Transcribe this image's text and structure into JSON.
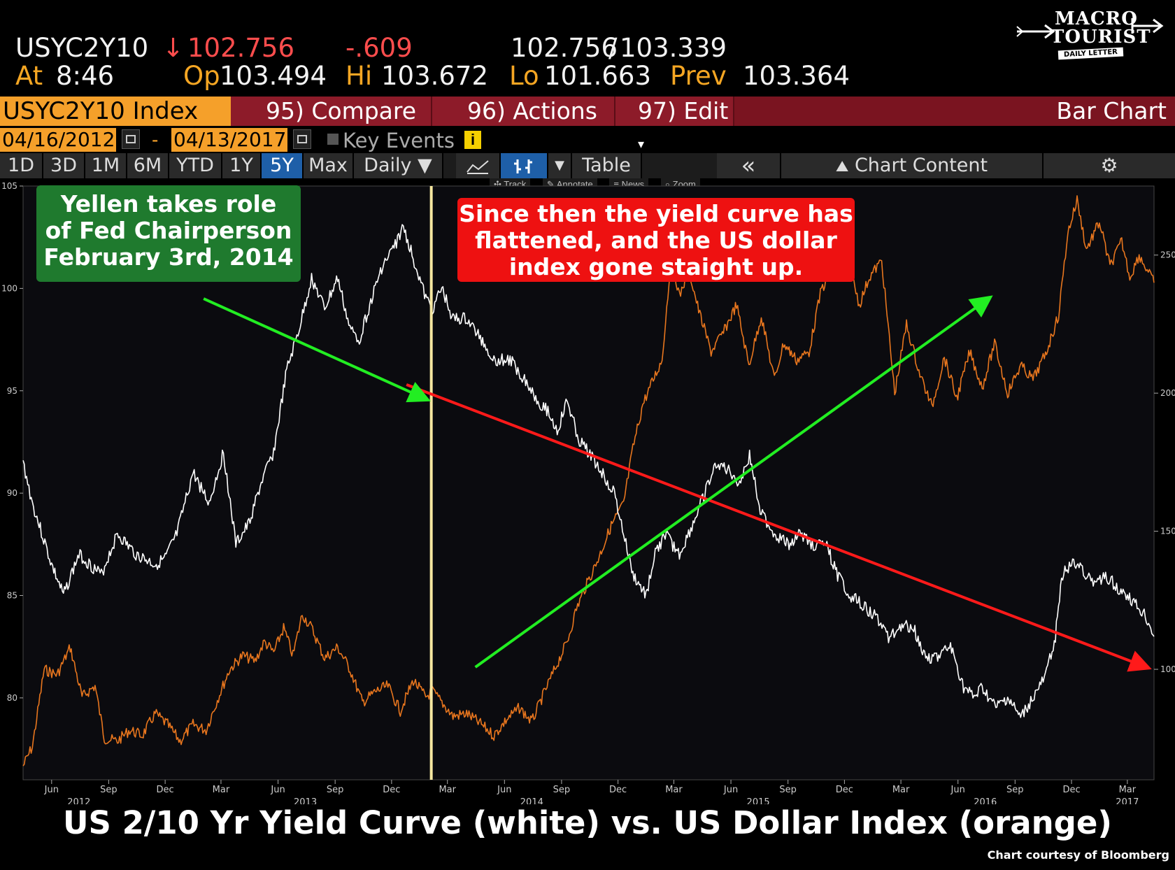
{
  "quote": {
    "ticker": "USYC2Y10",
    "last_arrow": "↓",
    "last": "102.756",
    "change": "-.609",
    "bid_ask_bid": "102.756",
    "bid_ask_sep": "/",
    "bid_ask_ask": "103.339",
    "at_label": "At",
    "time": "8:46",
    "open_label": "Op",
    "open": "103.494",
    "high_label": "Hi",
    "high": "103.672",
    "low_label": "Lo",
    "low": "101.663",
    "prev_label": "Prev",
    "prev": "103.364"
  },
  "logo": {
    "line1": "MACRO",
    "line2": "TOURIST",
    "line3": "DAILY LETTER"
  },
  "function_bar": {
    "security": "USYC2Y10 Index",
    "compare": "95) Compare",
    "actions": "96) Actions",
    "edit": "97) Edit",
    "chart_type": "Bar Chart"
  },
  "date_range": {
    "start": "04/16/2012",
    "separator": "-",
    "end": "04/13/2017",
    "key_events": "Key Events",
    "info": "i"
  },
  "range_buttons": [
    "1D",
    "3D",
    "1M",
    "6M",
    "YTD",
    "1Y",
    "5Y",
    "Max"
  ],
  "selected_range": "5Y",
  "frequency": "Daily ▼",
  "toolbar": {
    "table": "Table",
    "collapse": "«",
    "chart_content": "Chart Content",
    "settings": "⚙"
  },
  "tools": [
    "✣ Track",
    "✎ Annotate",
    "≡ News",
    "⌕ Zoom"
  ],
  "annotations": {
    "left": [
      "Yellen takes role",
      "of Fed Chairperson",
      "February 3rd, 2014"
    ],
    "right": [
      "Since then the yield curve has",
      "flattened, and the US dollar",
      "index gone staight up."
    ]
  },
  "chart_title": "US 2/10 Yr Yield Curve (white) vs. US Dollar Index (orange)",
  "credit": "Chart courtesy of Bloomberg",
  "colors": {
    "yield_curve": "#ffffff",
    "dollar_index": "#e8761e",
    "event_line": "#f6e7a0",
    "down_arrow": "#ff1a1a",
    "up_arrow": "#22ee22",
    "fn_bar": "#8d1b29",
    "ticker_bg": "#f5a02a"
  },
  "chart_data": {
    "type": "line",
    "x_range": [
      "2012-04-16",
      "2017-04-13"
    ],
    "x_tick_labels": [
      "Jun",
      "Sep",
      "Dec",
      "Mar",
      "Jun",
      "Sep",
      "Dec",
      "Mar",
      "Jun",
      "Sep",
      "Dec",
      "Mar",
      "Jun",
      "Sep",
      "Dec",
      "Mar",
      "Jun",
      "Sep",
      "Dec",
      "Mar"
    ],
    "x_tick_dates": [
      "2012-06-01",
      "2012-09-01",
      "2012-12-01",
      "2013-03-01",
      "2013-06-01",
      "2013-09-01",
      "2013-12-01",
      "2014-03-01",
      "2014-06-01",
      "2014-09-01",
      "2014-12-01",
      "2015-03-01",
      "2015-06-01",
      "2015-09-01",
      "2015-12-01",
      "2016-03-01",
      "2016-06-01",
      "2016-09-01",
      "2016-12-01",
      "2017-03-01"
    ],
    "year_labels": [
      "2012",
      "2013",
      "2014",
      "2015",
      "2016",
      "2017"
    ],
    "year_label_dates": [
      "2012-07-15",
      "2013-07-15",
      "2014-07-15",
      "2015-07-15",
      "2016-07-15",
      "2017-03-01"
    ],
    "left_axis": {
      "ylim": [
        76,
        105
      ],
      "ticks": [
        80,
        85,
        90,
        95,
        100,
        105
      ]
    },
    "right_axis": {
      "ylim": [
        60,
        275
      ],
      "ticks": [
        100,
        150,
        200,
        250
      ]
    },
    "event": {
      "date": "2014-02-03"
    },
    "series": [
      {
        "name": "US 2/10 Yr Yield Curve",
        "axis": "left",
        "x": [
          "2012-04-16",
          "2012-05-01",
          "2012-06-01",
          "2012-06-20",
          "2012-07-15",
          "2012-08-20",
          "2012-09-15",
          "2012-10-15",
          "2012-11-15",
          "2012-12-01",
          "2012-12-20",
          "2013-01-15",
          "2013-02-10",
          "2013-03-05",
          "2013-03-25",
          "2013-04-15",
          "2013-05-05",
          "2013-05-25",
          "2013-06-15",
          "2013-07-05",
          "2013-07-25",
          "2013-08-15",
          "2013-09-05",
          "2013-09-25",
          "2013-10-10",
          "2013-10-25",
          "2013-11-15",
          "2013-12-05",
          "2013-12-20",
          "2014-01-10",
          "2014-01-25",
          "2014-02-05",
          "2014-02-20",
          "2014-03-10",
          "2014-04-01",
          "2014-04-25",
          "2014-05-15",
          "2014-06-10",
          "2014-07-05",
          "2014-07-25",
          "2014-08-10",
          "2014-08-25",
          "2014-09-10",
          "2014-09-30",
          "2014-10-15",
          "2014-11-05",
          "2014-11-25",
          "2014-12-10",
          "2014-12-25",
          "2015-01-15",
          "2015-01-30",
          "2015-02-15",
          "2015-03-10",
          "2015-04-01",
          "2015-04-20",
          "2015-05-10",
          "2015-06-01",
          "2015-06-15",
          "2015-07-01",
          "2015-07-20",
          "2015-08-10",
          "2015-09-01",
          "2015-09-20",
          "2015-10-10",
          "2015-11-01",
          "2015-11-20",
          "2015-12-10",
          "2016-01-01",
          "2016-01-20",
          "2016-02-10",
          "2016-03-01",
          "2016-03-20",
          "2016-04-10",
          "2016-05-01",
          "2016-05-20",
          "2016-06-10",
          "2016-06-27",
          "2016-07-10",
          "2016-08-01",
          "2016-08-20",
          "2016-09-10",
          "2016-09-30",
          "2016-10-20",
          "2016-11-05",
          "2016-11-15",
          "2016-12-01",
          "2016-12-15",
          "2017-01-05",
          "2017-01-25",
          "2017-02-10",
          "2017-03-01",
          "2017-03-15",
          "2017-03-30",
          "2017-04-13"
        ],
        "values": [
          91.5,
          89.5,
          86.5,
          85,
          87,
          86,
          88,
          87,
          86.5,
          86.8,
          88,
          91,
          89.5,
          92,
          87.5,
          88.5,
          90.5,
          92,
          96,
          98,
          100.5,
          99,
          100.5,
          98,
          97.5,
          99,
          101,
          102,
          103,
          101,
          99.5,
          99,
          100,
          98.5,
          98.5,
          97.5,
          96.5,
          96.5,
          95.5,
          94.5,
          94,
          93,
          94.5,
          92.5,
          92,
          91,
          90,
          88,
          86,
          85,
          87,
          88,
          87,
          88.5,
          90,
          91.5,
          91,
          90.5,
          91.8,
          89,
          88,
          87.5,
          88,
          87.5,
          87.5,
          86,
          85,
          84.5,
          84,
          83,
          83.5,
          83.5,
          82,
          82,
          82.5,
          80.5,
          80,
          80.5,
          79.5,
          80,
          79,
          80,
          81,
          83,
          86,
          86.5,
          86.5,
          85.5,
          86,
          85.5,
          85,
          84.5,
          84,
          83
        ]
      },
      {
        "name": "US Dollar Index",
        "axis": "right",
        "x": [
          "2012-04-16",
          "2012-05-01",
          "2012-05-20",
          "2012-06-10",
          "2012-07-01",
          "2012-07-20",
          "2012-08-10",
          "2012-08-25",
          "2012-09-15",
          "2012-10-05",
          "2012-10-25",
          "2012-11-15",
          "2012-12-05",
          "2012-12-25",
          "2013-01-15",
          "2013-02-05",
          "2013-02-25",
          "2013-03-15",
          "2013-04-05",
          "2013-04-25",
          "2013-05-10",
          "2013-05-25",
          "2013-06-10",
          "2013-06-25",
          "2013-07-10",
          "2013-07-25",
          "2013-08-15",
          "2013-09-05",
          "2013-09-25",
          "2013-10-15",
          "2013-11-05",
          "2013-11-25",
          "2013-12-15",
          "2014-01-05",
          "2014-01-25",
          "2014-02-05",
          "2014-02-20",
          "2014-03-10",
          "2014-04-01",
          "2014-04-25",
          "2014-05-15",
          "2014-06-05",
          "2014-06-25",
          "2014-07-15",
          "2014-08-05",
          "2014-08-25",
          "2014-09-10",
          "2014-09-25",
          "2014-10-10",
          "2014-10-30",
          "2014-11-20",
          "2014-12-10",
          "2014-12-25",
          "2015-01-10",
          "2015-01-25",
          "2015-02-10",
          "2015-02-25",
          "2015-03-10",
          "2015-03-25",
          "2015-04-10",
          "2015-04-30",
          "2015-05-20",
          "2015-06-10",
          "2015-06-30",
          "2015-07-20",
          "2015-08-10",
          "2015-08-25",
          "2015-09-15",
          "2015-10-05",
          "2015-10-25",
          "2015-11-15",
          "2015-12-05",
          "2015-12-25",
          "2016-01-10",
          "2016-01-30",
          "2016-02-20",
          "2016-03-10",
          "2016-03-30",
          "2016-04-20",
          "2016-05-10",
          "2016-05-30",
          "2016-06-20",
          "2016-07-10",
          "2016-07-30",
          "2016-08-20",
          "2016-09-10",
          "2016-09-30",
          "2016-10-20",
          "2016-11-10",
          "2016-11-25",
          "2016-12-10",
          "2016-12-25",
          "2017-01-15",
          "2017-02-01",
          "2017-02-20",
          "2017-03-05",
          "2017-03-20",
          "2017-04-13"
        ],
        "values": [
          65,
          72,
          100,
          98,
          108,
          90,
          94,
          75,
          74,
          78,
          76,
          84,
          80,
          74,
          80,
          78,
          90,
          100,
          105,
          103,
          110,
          106,
          115,
          105,
          120,
          115,
          104,
          108,
          100,
          88,
          92,
          94,
          85,
          96,
          90,
          92,
          88,
          83,
          84,
          80,
          76,
          82,
          86,
          81,
          92,
          102,
          110,
          122,
          130,
          140,
          152,
          160,
          180,
          196,
          204,
          212,
          250,
          235,
          245,
          230,
          215,
          222,
          232,
          210,
          228,
          205,
          218,
          212,
          215,
          238,
          244,
          250,
          232,
          242,
          248,
          200,
          225,
          208,
          195,
          213,
          198,
          215,
          202,
          218,
          200,
          210,
          205,
          214,
          228,
          258,
          270,
          252,
          262,
          246,
          255,
          242,
          250,
          240
        ]
      }
    ],
    "trend_arrows": [
      {
        "color": "red",
        "from": [
          "2013-12-25",
          95.3
        ],
        "to": [
          "2017-04-01",
          81.5
        ]
      },
      {
        "color": "green",
        "from": [
          "2014-04-15",
          81.5
        ],
        "to": [
          "2016-07-20",
          99.5
        ]
      },
      {
        "color": "green",
        "from": [
          "2013-02-01",
          99.5
        ],
        "to": [
          "2014-01-25",
          94.6
        ]
      }
    ]
  }
}
